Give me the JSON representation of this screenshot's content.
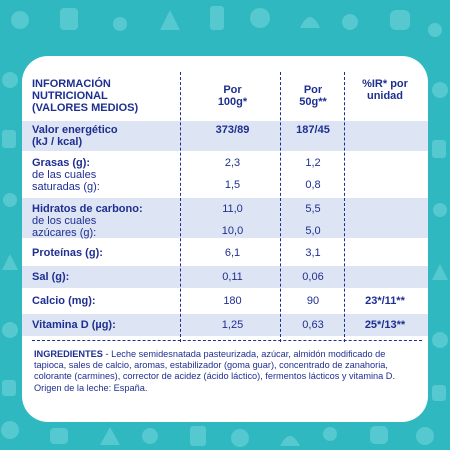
{
  "header": {
    "col0_line1": "INFORMACIÓN",
    "col0_line2": "NUTRICIONAL",
    "col0_line3": "(VALORES MEDIOS)",
    "col1_line1": "Por",
    "col1_line2": "100g*",
    "col2_line1": "Por",
    "col2_line2": "50g**",
    "col3_line1": "%IR* por",
    "col3_line2": "unidad"
  },
  "rows": [
    {
      "label1": "Valor energético",
      "label2": "(kJ / kcal)",
      "v1": "373/89",
      "v2": "187/45",
      "v3": ""
    },
    {
      "label1": "Grasas (g):",
      "v1": "2,3",
      "v2": "1,2",
      "v3": ""
    },
    {
      "label1": "de las cuales",
      "label2": "saturadas (g):",
      "v1": "1,5",
      "v2": "0,8",
      "v3": ""
    },
    {
      "label1": "Hidratos de carbono:",
      "v1": "11,0",
      "v2": "5,5",
      "v3": ""
    },
    {
      "label1": "de los cuales",
      "label2": "azúcares (g):",
      "v1": "10,0",
      "v2": "5,0",
      "v3": ""
    },
    {
      "label1": "Proteínas (g):",
      "v1": "6,1",
      "v2": "3,1",
      "v3": ""
    },
    {
      "label1": "Sal (g):",
      "v1": "0,11",
      "v2": "0,06",
      "v3": ""
    },
    {
      "label1": "Calcio (mg):",
      "v1": "180",
      "v2": "90",
      "v3": "23*/11**"
    },
    {
      "label1": "Vitamina D (µg):",
      "v1": "1,25",
      "v2": "0,63",
      "v3": "25*/13**"
    }
  ],
  "ingredients": {
    "heading": "INGREDIENTES",
    "text": " - Leche semidesnatada pasteurizada, azúcar, almidón modificado de tapioca, sales de calcio, aromas, estabilizador (goma guar), concentrado de zanahoria, colorante (carmines), corrector de acidez (ácido láctico), fermentos lácticos y vitamina D. Origen de la leche: España."
  },
  "colors": {
    "background": "#2fb8bf",
    "text": "#1f2f8f",
    "shade": "#dde5f5",
    "pattern": "#5cccd2"
  },
  "icons": [
    "background-doodle-pattern"
  ]
}
